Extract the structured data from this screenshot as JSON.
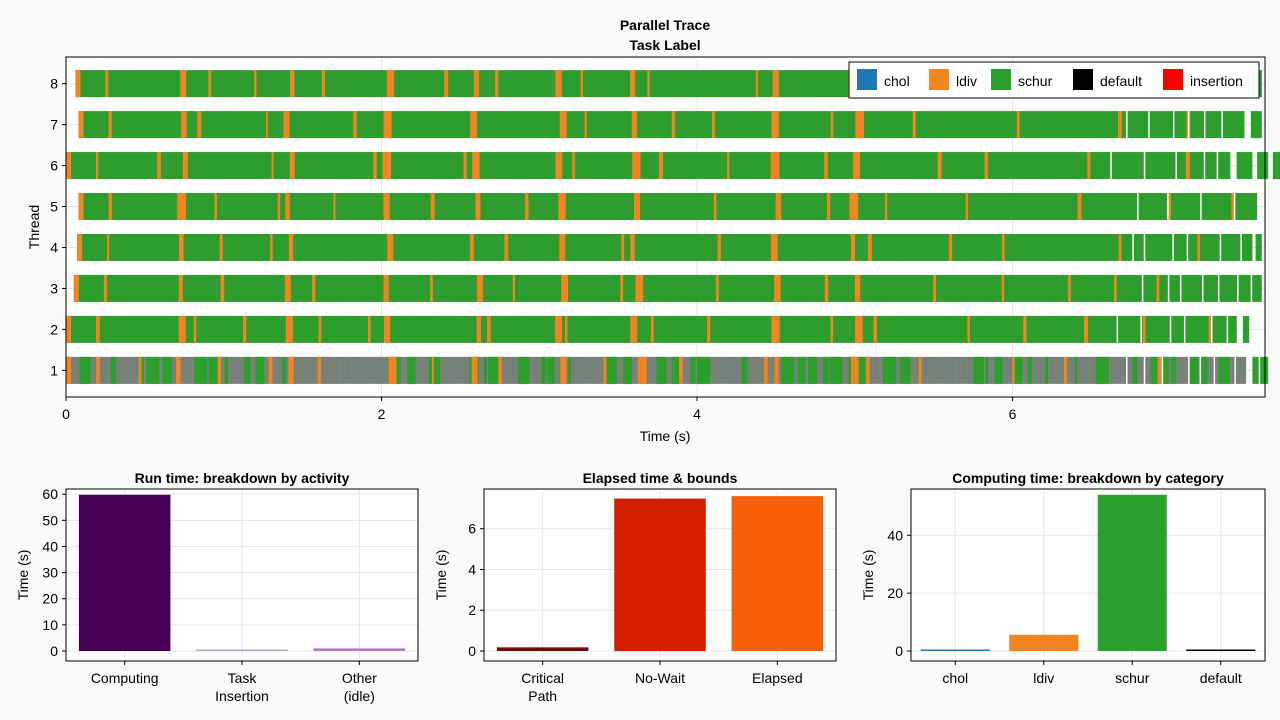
{
  "colors": {
    "chol": "#1f77b4",
    "ldiv": "#f28522",
    "schur": "#2ca02c",
    "default": "#000000",
    "insertion": "#ff0000",
    "idle": "#808080",
    "computing": "#440154",
    "task_insertion": "#aaa9c8",
    "other_idle": "#a97fc4",
    "critical_path": "#6f0c0c",
    "no_wait": "#d31e00",
    "elapsed": "#f56008"
  },
  "chart_data": [
    {
      "type": "gantt",
      "title": "Parallel Trace",
      "subtitle": "Task Label",
      "xlabel": "Time (s)",
      "ylabel": "Thread",
      "xlim": [
        0,
        7.6
      ],
      "ylim": [
        0.35,
        8.65
      ],
      "xticks": [
        "0",
        "2",
        "4",
        "6"
      ],
      "yticks": [
        "1",
        "2",
        "3",
        "4",
        "5",
        "6",
        "7",
        "8"
      ],
      "grid": true,
      "legend_position": "top-right",
      "legend": [
        "chol",
        "ldiv",
        "schur",
        "default",
        "insertion"
      ],
      "threads": [
        {
          "thread": 1,
          "start": 0.0,
          "end": 7.48,
          "idle_mix": true,
          "segments": [
            [
              7.52,
              7.56
            ],
            [
              7.57,
              7.62
            ]
          ]
        },
        {
          "thread": 2,
          "start": 0.0,
          "end": 7.42,
          "idle_mix": false,
          "segments": [
            [
              7.46,
              7.5
            ]
          ]
        },
        {
          "thread": 3,
          "start": 0.05,
          "end": 7.58,
          "idle_mix": false,
          "segments": []
        },
        {
          "thread": 4,
          "start": 0.07,
          "end": 7.52,
          "idle_mix": false,
          "segments": [
            [
              7.54,
              7.58
            ]
          ]
        },
        {
          "thread": 5,
          "start": 0.08,
          "end": 7.55,
          "idle_mix": false,
          "segments": []
        },
        {
          "thread": 6,
          "start": 0.0,
          "end": 7.38,
          "idle_mix": false,
          "segments": [
            [
              7.42,
              7.52
            ],
            [
              7.55,
              7.62
            ],
            [
              7.65,
              7.7
            ]
          ]
        },
        {
          "thread": 7,
          "start": 0.08,
          "end": 7.48,
          "idle_mix": false,
          "segments": [
            [
              7.51,
              7.58
            ]
          ]
        },
        {
          "thread": 8,
          "start": 0.06,
          "end": 7.58,
          "idle_mix": false,
          "segments": []
        }
      ],
      "ldiv_bands": [
        0.72,
        1.4,
        2.02,
        2.58,
        3.12,
        3.6,
        4.48,
        4.98
      ]
    },
    {
      "type": "bar",
      "title": "Run time: breakdown by activity",
      "ylabel": "Time (s)",
      "categories": [
        "Computing",
        "Task\nInsertion",
        "Other\n(idle)"
      ],
      "values": [
        59.8,
        0.15,
        1.0
      ],
      "ylim": [
        0,
        62
      ],
      "yticks": [
        0,
        10,
        20,
        30,
        40,
        50,
        60
      ],
      "colors_keys": [
        "computing",
        "task_insertion",
        "other_idle"
      ]
    },
    {
      "type": "bar",
      "title": "Elapsed time & bounds",
      "ylabel": "Time (s)",
      "categories": [
        "Critical\nPath",
        "No-Wait",
        "Elapsed"
      ],
      "values": [
        0.18,
        7.48,
        7.6
      ],
      "ylim": [
        0,
        7.95
      ],
      "yticks": [
        0,
        2,
        4,
        6
      ],
      "colors_keys": [
        "critical_path",
        "no_wait",
        "elapsed"
      ]
    },
    {
      "type": "bar",
      "title": "Computing time: breakdown by category",
      "ylabel": "Time (s)",
      "categories": [
        "chol",
        "ldiv",
        "schur",
        "default"
      ],
      "values": [
        0.05,
        5.6,
        54.0,
        0.0
      ],
      "ylim": [
        0,
        56
      ],
      "yticks": [
        0,
        20,
        40
      ],
      "colors_keys": [
        "chol",
        "ldiv",
        "schur",
        "default"
      ]
    }
  ]
}
